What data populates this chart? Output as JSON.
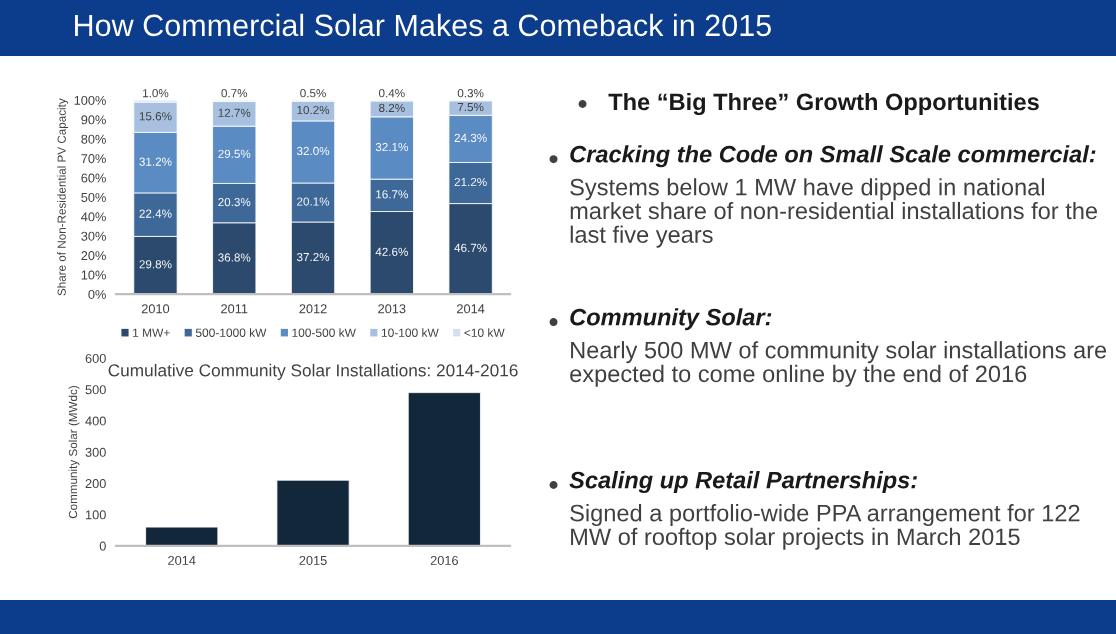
{
  "chart_data": [
    {
      "type": "bar",
      "stacked": true,
      "ylabel": "Share of Non-Residential PV Capacity",
      "categories": [
        "2010",
        "2011",
        "2012",
        "2013",
        "2014"
      ],
      "ylim": [
        0,
        100
      ],
      "yticks": [
        {
          "value": 0,
          "label": "0%"
        },
        {
          "value": 10,
          "label": "10%"
        },
        {
          "value": 20,
          "label": "20%"
        },
        {
          "value": 30,
          "label": "30%"
        },
        {
          "value": 40,
          "label": "40%"
        },
        {
          "value": 50,
          "label": "50%"
        },
        {
          "value": 60,
          "label": "60%"
        },
        {
          "value": 70,
          "label": "70%"
        },
        {
          "value": 80,
          "label": "80%"
        },
        {
          "value": 90,
          "label": "90%"
        },
        {
          "value": 100,
          "label": "100%"
        }
      ],
      "legend": "bottom",
      "grid": false,
      "series": [
        {
          "name": "1 MW+",
          "color": "#2c4a6e",
          "values": [
            29.8,
            36.8,
            37.2,
            42.6,
            46.7
          ],
          "value_labels": [
            "29.8%",
            "36.8%",
            "37.2%",
            "42.6%",
            "46.7%"
          ]
        },
        {
          "name": "500-1000 kW",
          "color": "#3d6898",
          "values": [
            22.4,
            20.3,
            20.1,
            16.7,
            21.2
          ],
          "value_labels": [
            "22.4%",
            "20.3%",
            "20.1%",
            "16.7%",
            "21.2%"
          ]
        },
        {
          "name": "100-500 kW",
          "color": "#5a8bc3",
          "values": [
            31.2,
            29.5,
            32.0,
            32.1,
            24.3
          ],
          "value_labels": [
            "31.2%",
            "29.5%",
            "32.0%",
            "32.1%",
            "24.3%"
          ]
        },
        {
          "name": "10-100 kW",
          "color": "#a8c0e0",
          "values": [
            15.6,
            12.7,
            10.2,
            8.2,
            7.5
          ],
          "value_labels": [
            "15.6%",
            "12.7%",
            "10.2%",
            "8.2%",
            "7.5%"
          ]
        },
        {
          "name": "<10 kW",
          "color": "#d4e0f0",
          "values": [
            1.0,
            0.7,
            0.5,
            0.4,
            0.3
          ],
          "value_labels": [
            "1.0%",
            "0.7%",
            "0.5%",
            "0.4%",
            "0.3%"
          ]
        }
      ]
    },
    {
      "type": "bar",
      "title": "Cumulative Community Solar Installations: 2014-2016",
      "ylabel": "Community Solar (MWdc)",
      "categories": [
        "2014",
        "2015",
        "2016"
      ],
      "values": [
        60,
        210,
        490
      ],
      "color": "#13273a",
      "ylim": [
        0,
        600
      ],
      "yticks": [
        0,
        100,
        200,
        300,
        400,
        500,
        600
      ],
      "grid": false,
      "legend": false
    },
    {
      "type": "other",
      "title": "How Commercial Solar Makes a Comeback in 2015",
      "subtitle": "The “Big Three” Growth Opportunities",
      "annotations": [
        "Cracking the Code on Small Scale commercial:",
        "Systems below 1 MW have dipped in national market share of non-residential installations for the last five years",
        "Community Solar:",
        "Nearly 500 MW of community solar installations are expected to come online by the end of 2016",
        "Scaling up Retail Partnerships:",
        "Signed a portfolio-wide PPA arrangement for 122 MW of rooftop solar projects in March 2015"
      ]
    }
  ]
}
